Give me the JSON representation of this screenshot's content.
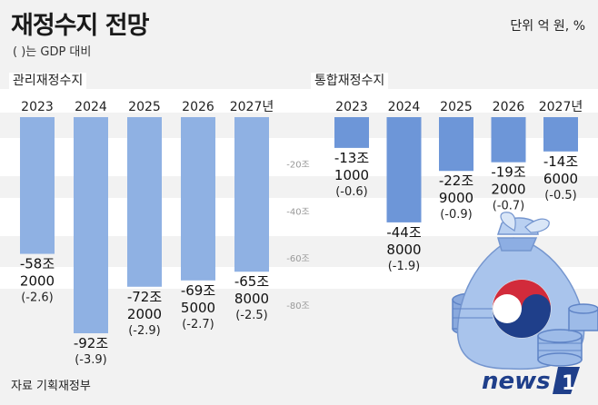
{
  "title": "재정수지 전망",
  "subtitle": "( )는 GDP 대비",
  "unit": "단위 억 원, %",
  "source": "자료 기획재정부",
  "brand": "news1",
  "colors": {
    "bar_left": "#8fb1e3",
    "bar_right": "#6d96d8",
    "background": "#f2f2f2",
    "band": "#ffffff",
    "axis_text": "#999999"
  },
  "chart_data": [
    {
      "type": "bar",
      "title": "관리재정수지",
      "categories": [
        "2023",
        "2024",
        "2025",
        "2026",
        "2027년"
      ],
      "values": [
        -582000,
        -920000,
        -722000,
        -695000,
        -658000
      ],
      "value_labels": [
        [
          "-58조",
          "2000"
        ],
        [
          "-92조",
          ""
        ],
        [
          "-72조",
          "2000"
        ],
        [
          "-69조",
          "5000"
        ],
        [
          "-65조",
          "8000"
        ]
      ],
      "gdp_ratio_labels": [
        "(-2.6)",
        "(-3.9)",
        "(-2.9)",
        "(-2.7)",
        "(-2.5)"
      ],
      "ylim": [
        -1000000,
        0
      ],
      "grid": false
    },
    {
      "type": "bar",
      "title": "통합재정수지",
      "categories": [
        "2023",
        "2024",
        "2025",
        "2026",
        "2027년"
      ],
      "values": [
        -131000,
        -448000,
        -229000,
        -192000,
        -146000
      ],
      "value_labels": [
        [
          "-13조",
          "1000"
        ],
        [
          "-44조",
          "8000"
        ],
        [
          "-22조",
          "9000"
        ],
        [
          "-19조",
          "2000"
        ],
        [
          "-14조",
          "6000"
        ]
      ],
      "gdp_ratio_labels": [
        "(-0.6)",
        "(-1.9)",
        "(-0.9)",
        "(-0.7)",
        "(-0.5)"
      ],
      "ylim": [
        -1000000,
        0
      ],
      "grid": false
    }
  ],
  "axis_ticks": [
    "-20조",
    "-40조",
    "-60조",
    "-80조"
  ],
  "axis_tick_values": [
    -200000,
    -400000,
    -600000,
    -800000
  ]
}
